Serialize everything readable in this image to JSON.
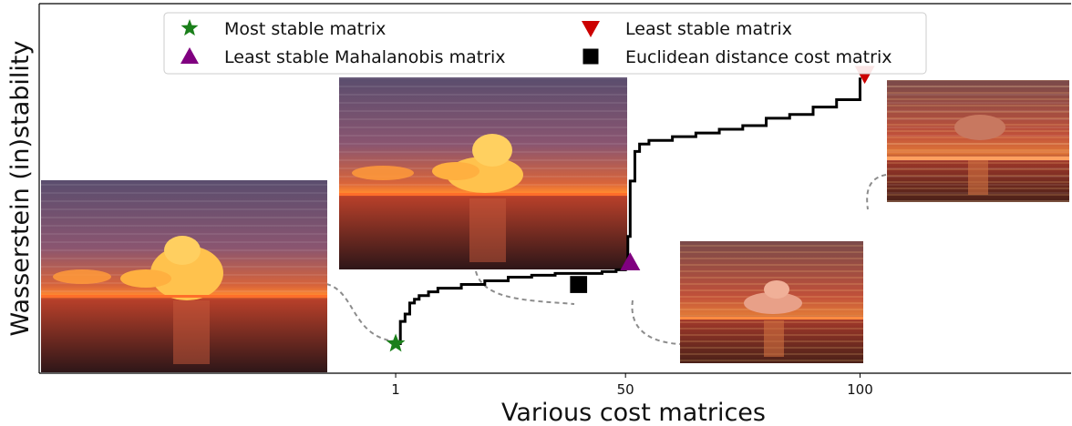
{
  "chart_data": {
    "type": "line",
    "xlabel": "Various cost matrices",
    "ylabel": "Wasserstein (in)stability",
    "xticks": [
      "1",
      "50",
      "100"
    ],
    "xlim": [
      -75,
      145
    ],
    "ylim": [
      0,
      1
    ],
    "grid": false,
    "legend_position": "top",
    "series": [
      {
        "x": [
          1,
          2,
          3,
          4,
          5,
          6,
          8,
          10,
          15,
          20,
          25,
          30,
          35,
          40,
          45,
          48,
          50,
          50.5,
          51,
          52,
          53,
          55,
          60,
          65,
          70,
          75,
          80,
          85,
          90,
          95,
          100
        ],
        "y": [
          0.08,
          0.14,
          0.16,
          0.19,
          0.2,
          0.21,
          0.22,
          0.23,
          0.24,
          0.25,
          0.26,
          0.265,
          0.27,
          0.27,
          0.275,
          0.28,
          0.29,
          0.37,
          0.52,
          0.6,
          0.62,
          0.63,
          0.64,
          0.65,
          0.66,
          0.67,
          0.69,
          0.7,
          0.72,
          0.74,
          0.8
        ]
      }
    ],
    "markers": [
      {
        "label": "Most stable matrix",
        "x": 1,
        "y": 0.08,
        "shape": "star",
        "color": "#1a7f1a"
      },
      {
        "label": "Least stable Mahalanobis matrix",
        "x": 51,
        "y": 0.3,
        "shape": "triangle-up",
        "color": "#800080"
      },
      {
        "label": "Least stable matrix",
        "x": 101,
        "y": 0.81,
        "shape": "triangle-down",
        "color": "#cc0000"
      },
      {
        "label": "Euclidean distance cost matrix",
        "x": 40,
        "y": 0.24,
        "shape": "square",
        "color": "#000000"
      }
    ]
  },
  "colors": {
    "curve": "#000000",
    "connector": "#8c8c8c",
    "sky_top": "#5a4d6e",
    "sky_mid": "#c85a3c",
    "horizon": "#ff7a2e",
    "sea": "#3a1a1c",
    "cloud": "#ffc24d"
  }
}
